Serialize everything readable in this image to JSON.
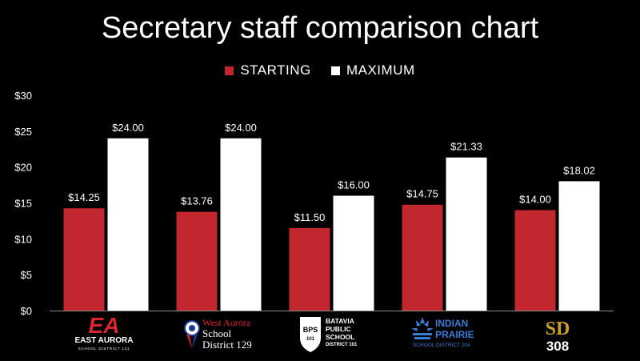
{
  "chart_data": {
    "type": "bar",
    "title": "Secretary staff comparison chart",
    "categories": [
      "EAST AURORA",
      "West Aurora School District 129",
      "BATAVIA PUBLIC SCHOOL DISTRICT 101",
      "INDIAN PRAIRIE SCHOOL DISTRICT 204",
      "SD 308"
    ],
    "series": [
      {
        "name": "STARTING",
        "color": "#c1272d",
        "values": [
          14.25,
          13.76,
          11.5,
          14.75,
          14.0
        ],
        "labels": [
          "$14.25",
          "$13.76",
          "$11.50",
          "$14.75",
          "$14.00"
        ]
      },
      {
        "name": "MAXIMUM",
        "color": "#ffffff",
        "values": [
          24.0,
          24.0,
          16.0,
          21.33,
          18.02
        ],
        "labels": [
          "$24.00",
          "$24.00",
          "$16.00",
          "$21.33",
          "$18.02"
        ]
      }
    ],
    "ylim": [
      0,
      30
    ],
    "yticks": [
      0,
      5,
      10,
      15,
      20,
      25,
      30
    ],
    "ytick_labels": [
      "$0",
      "$5",
      "$10",
      "$15",
      "$20",
      "$25",
      "$30"
    ],
    "xlabel": "",
    "ylabel": "",
    "legend_position": "top-center",
    "grid": false
  },
  "logos": {
    "east_aurora": {
      "mark": "EA",
      "name": "EAST AURORA",
      "sub": "SCHOOL DISTRICT 131"
    },
    "west_aurora": {
      "line1": "West Aurora",
      "line2": "School",
      "line3": "District 129"
    },
    "batavia": {
      "badge": "BPS",
      "badge_num": "101",
      "line1": "BATAVIA",
      "line2": "PUBLIC",
      "line3": "SCHOOL",
      "line4": "DISTRICT 101"
    },
    "indian_prairie": {
      "line1": "INDIAN",
      "line2": "PRAIRIE",
      "sub": "SCHOOL DISTRICT 204"
    },
    "sd308": {
      "top": "SD",
      "bottom": "308"
    }
  }
}
